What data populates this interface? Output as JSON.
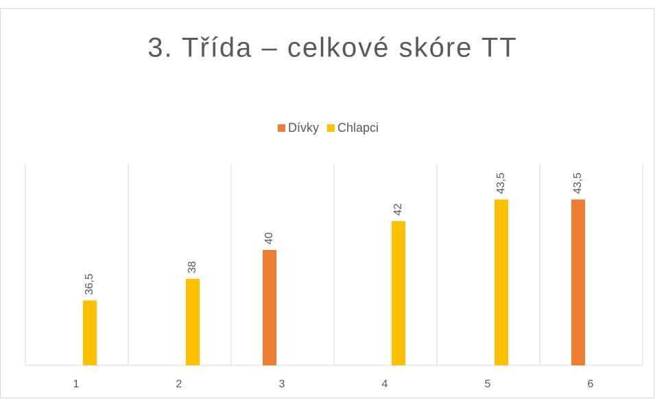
{
  "chart_data": {
    "type": "bar",
    "title": "3. Třída – celkové skóre TT",
    "categories": [
      "1",
      "2",
      "3",
      "4",
      "5",
      "6"
    ],
    "series": [
      {
        "name": "Dívky",
        "color": "#ed7d31",
        "values": [
          null,
          null,
          40,
          null,
          null,
          43.5
        ],
        "value_labels": [
          null,
          null,
          "40",
          null,
          null,
          "43,5"
        ]
      },
      {
        "name": "Chlapci",
        "color": "#ffc000",
        "values": [
          36.5,
          38,
          null,
          42,
          43.5,
          null
        ],
        "value_labels": [
          "36,5",
          "38",
          null,
          "42",
          "43,5",
          null
        ]
      }
    ],
    "ylim": [
      32,
      46
    ],
    "legend": "top"
  }
}
